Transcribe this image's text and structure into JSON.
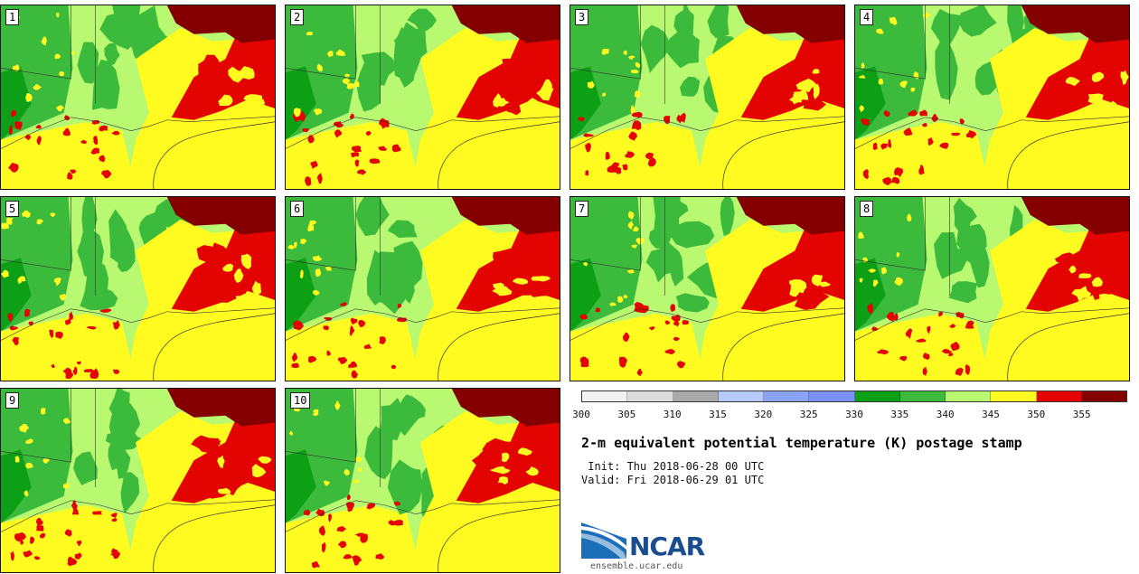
{
  "figure": {
    "title": "2-m equivalent potential temperature (K) postage stamp",
    "init_line": " Init: Thu 2018-06-28 00 UTC",
    "valid_line": "Valid: Fri 2018-06-29 01 UTC",
    "source_url": "ensemble.ucar.edu",
    "logo_text": "NCAR"
  },
  "members": [
    "1",
    "2",
    "3",
    "4",
    "5",
    "6",
    "7",
    "8",
    "9",
    "10"
  ],
  "colorbar": {
    "tick_labels": [
      "300",
      "305",
      "310",
      "315",
      "320",
      "325",
      "330",
      "335",
      "340",
      "345",
      "350",
      "355"
    ],
    "colors": [
      "#f2f2f2",
      "#dcdcdc",
      "#aaaaaa",
      "#b6c9fb",
      "#8aa3f6",
      "#7d8ef5",
      "#0da017",
      "#3cba3b",
      "#b9f871",
      "#fffa1f",
      "#e30300",
      "#840000"
    ]
  },
  "map_colors": {
    "dark_green": "#0da017",
    "green": "#3cba3b",
    "light_green": "#b9f871",
    "yellow": "#fffa1f",
    "red": "#e30300",
    "dark_red": "#840000",
    "boundary": "#333333"
  }
}
